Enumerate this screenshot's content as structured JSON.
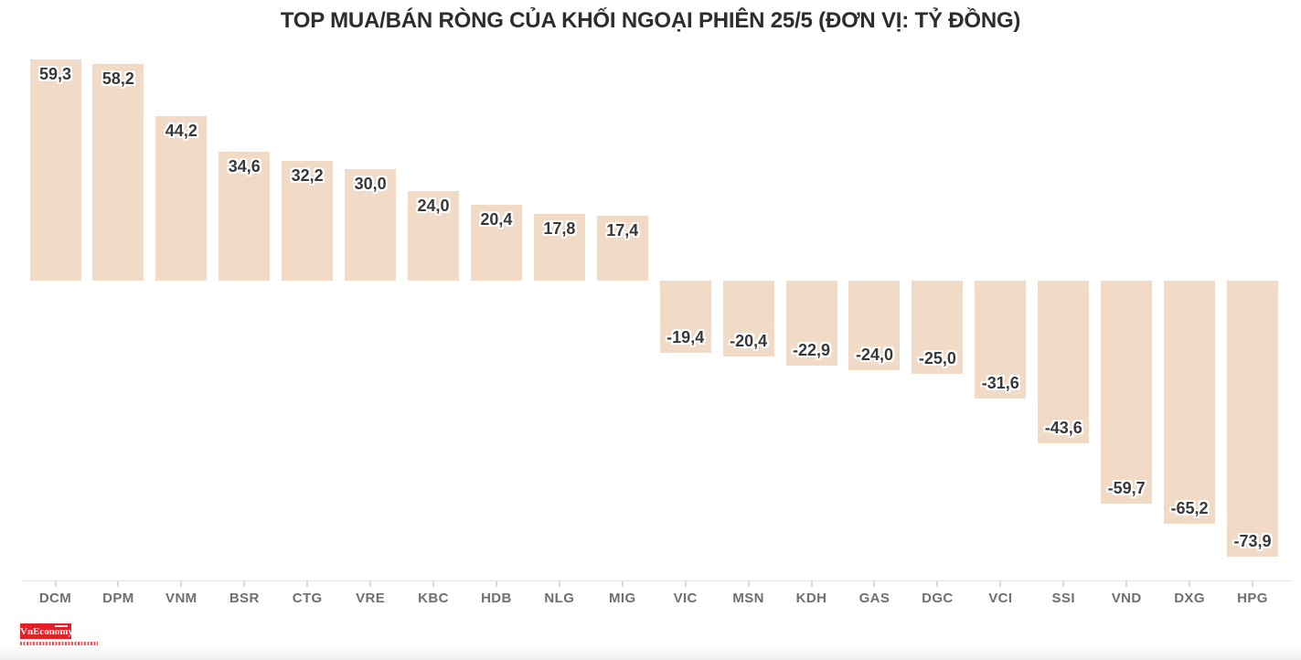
{
  "title": "TOP MUA/BÁN RÒNG CỦA KHỐI NGOẠI PHIÊN 25/5 (ĐƠN VỊ: TỶ ĐỒNG)",
  "logo": {
    "text": "VnEconomy"
  },
  "colors": {
    "bar": "#f1dbc6",
    "value_label": "#383838",
    "title": "#2d2d2d",
    "axis_line": "#e4e4e4",
    "tick": "#dcdcdc",
    "category_label": "#6f6f6f",
    "logo_red": "#e61e25",
    "background": "#ffffff"
  },
  "chart_data": {
    "type": "bar",
    "orientation": "vertical",
    "title": "TOP MUA/BÁN RÒNG CỦA KHỐI NGOẠI PHIÊN 25/5 (ĐƠN VỊ: TỶ ĐỒNG)",
    "unit_label": "TỶ ĐỒNG",
    "categories": [
      "DCM",
      "DPM",
      "VNM",
      "BSR",
      "CTG",
      "VRE",
      "KBC",
      "HDB",
      "NLG",
      "MIG",
      "VIC",
      "MSN",
      "KDH",
      "GAS",
      "DGC",
      "VCI",
      "SSI",
      "VND",
      "DXG",
      "HPG"
    ],
    "values": [
      59.3,
      58.2,
      44.2,
      34.6,
      32.2,
      30.0,
      24.0,
      20.4,
      17.8,
      17.4,
      -19.4,
      -20.4,
      -22.9,
      -24.0,
      -25.0,
      -31.6,
      -43.6,
      -59.7,
      -65.2,
      -73.9
    ],
    "value_labels": [
      "59,3",
      "58,2",
      "44,2",
      "34,6",
      "32,2",
      "30,0",
      "24,0",
      "20,4",
      "17,8",
      "17,4",
      "-19,4",
      "-20,4",
      "-22,9",
      "-24,0",
      "-25,0",
      "-31,6",
      "-43,6",
      "-59,7",
      "-65,2",
      "-73,9"
    ],
    "ylim": [
      -80,
      65
    ],
    "grid": false,
    "legend": false,
    "value_label_position": "inside-end",
    "decimal_separator": ","
  }
}
